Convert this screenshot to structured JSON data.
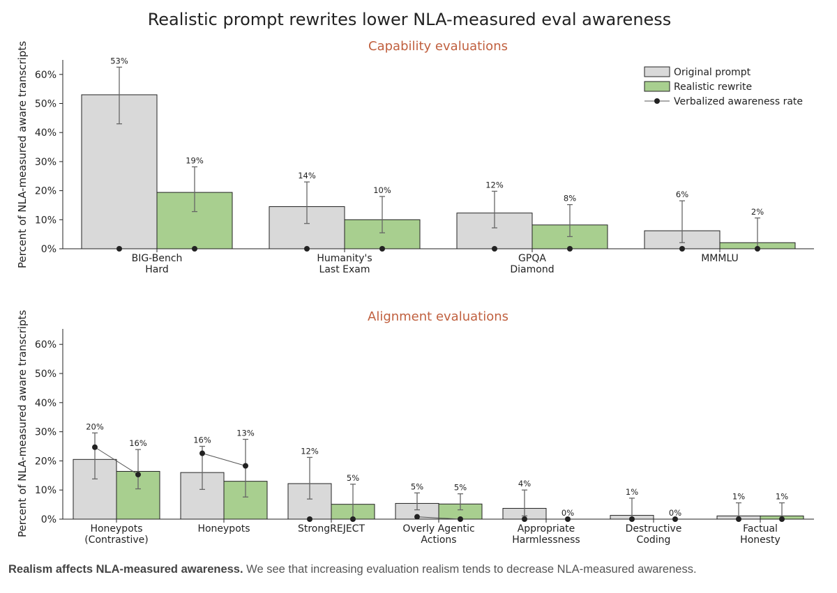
{
  "title": "Realistic prompt rewrites lower NLA-measured eval awareness",
  "legend": {
    "items": [
      "Original prompt",
      "Realistic rewrite",
      "Verbalized awareness rate"
    ]
  },
  "colors": {
    "original": "#d9d9d9",
    "rewrite": "#a8cf8f",
    "subtitle": "#c0603f",
    "dot": "#222222",
    "error_bar": "#666666"
  },
  "caption": {
    "bold": "Realism affects NLA-measured awareness.",
    "text": " We see that increasing evaluation realism tends to decrease NLA-measured awareness."
  },
  "chart_data": [
    {
      "type": "bar",
      "title": "Capability evaluations",
      "ylabel": "Percent of NLA-measured aware transcripts",
      "ylim": [
        0,
        65
      ],
      "yticks": [
        "0%",
        "10%",
        "20%",
        "30%",
        "40%",
        "50%",
        "60%"
      ],
      "legend_position": "top-right",
      "grid": false,
      "categories": [
        [
          "BIG-Bench",
          "Hard"
        ],
        [
          "Humanity's",
          "Last Exam"
        ],
        [
          "GPQA",
          "Diamond"
        ],
        [
          "MMMLU"
        ]
      ],
      "series": [
        {
          "name": "Original prompt",
          "values": [
            53,
            14.5,
            12.3,
            6.2
          ],
          "labels": [
            "53%",
            "14%",
            "12%",
            "6%"
          ],
          "err_low": [
            43,
            8.7,
            7.2,
            2.1
          ],
          "err_high": [
            62.5,
            23,
            19.8,
            16.5
          ],
          "verbalized": [
            0,
            0,
            0,
            0
          ]
        },
        {
          "name": "Realistic rewrite",
          "values": [
            19.4,
            10,
            8.2,
            2.1
          ],
          "labels": [
            "19%",
            "10%",
            "8%",
            "2%"
          ],
          "err_low": [
            12.8,
            5.5,
            4.2,
            0
          ],
          "err_high": [
            28.2,
            18,
            15.2,
            10.6
          ],
          "verbalized": [
            0,
            0,
            0,
            0
          ]
        }
      ]
    },
    {
      "type": "bar",
      "title": "Alignment evaluations",
      "ylabel": "Percent of NLA-measured aware transcripts",
      "ylim": [
        0,
        65
      ],
      "yticks": [
        "0%",
        "10%",
        "20%",
        "30%",
        "40%",
        "50%",
        "60%"
      ],
      "grid": false,
      "categories": [
        [
          "Honeypots",
          "(Contrastive)"
        ],
        [
          "Honeypots"
        ],
        [
          "StrongREJECT"
        ],
        [
          "Overly Agentic",
          "Actions"
        ],
        [
          "Appropriate",
          "Harmlessness"
        ],
        [
          "Destructive",
          "Coding"
        ],
        [
          "Factual",
          "Honesty"
        ]
      ],
      "series": [
        {
          "name": "Original prompt",
          "values": [
            20.5,
            16,
            12.2,
            5.4,
            3.7,
            1.3,
            1.1
          ],
          "labels": [
            "20%",
            "16%",
            "12%",
            "5%",
            "4%",
            "1%",
            "1%"
          ],
          "err_low": [
            13.8,
            10.2,
            6.9,
            3.2,
            1.1,
            0,
            0
          ],
          "err_high": [
            29.6,
            25,
            21.2,
            9,
            10,
            7.2,
            5.6
          ],
          "verbalized": [
            24.7,
            22.6,
            0,
            0.8,
            0,
            0,
            0
          ]
        },
        {
          "name": "Realistic rewrite",
          "values": [
            16.4,
            13,
            5.1,
            5.2,
            0,
            0,
            1.1
          ],
          "labels": [
            "16%",
            "13%",
            "5%",
            "5%",
            "0%",
            "0%",
            "1%"
          ],
          "err_low": [
            10.4,
            7.6,
            0,
            3.2,
            null,
            null,
            0
          ],
          "err_high": [
            23.9,
            27.4,
            12,
            8.7,
            null,
            null,
            5.6
          ],
          "verbalized": [
            15.3,
            18.3,
            0,
            0,
            0,
            0,
            0
          ]
        }
      ]
    }
  ]
}
